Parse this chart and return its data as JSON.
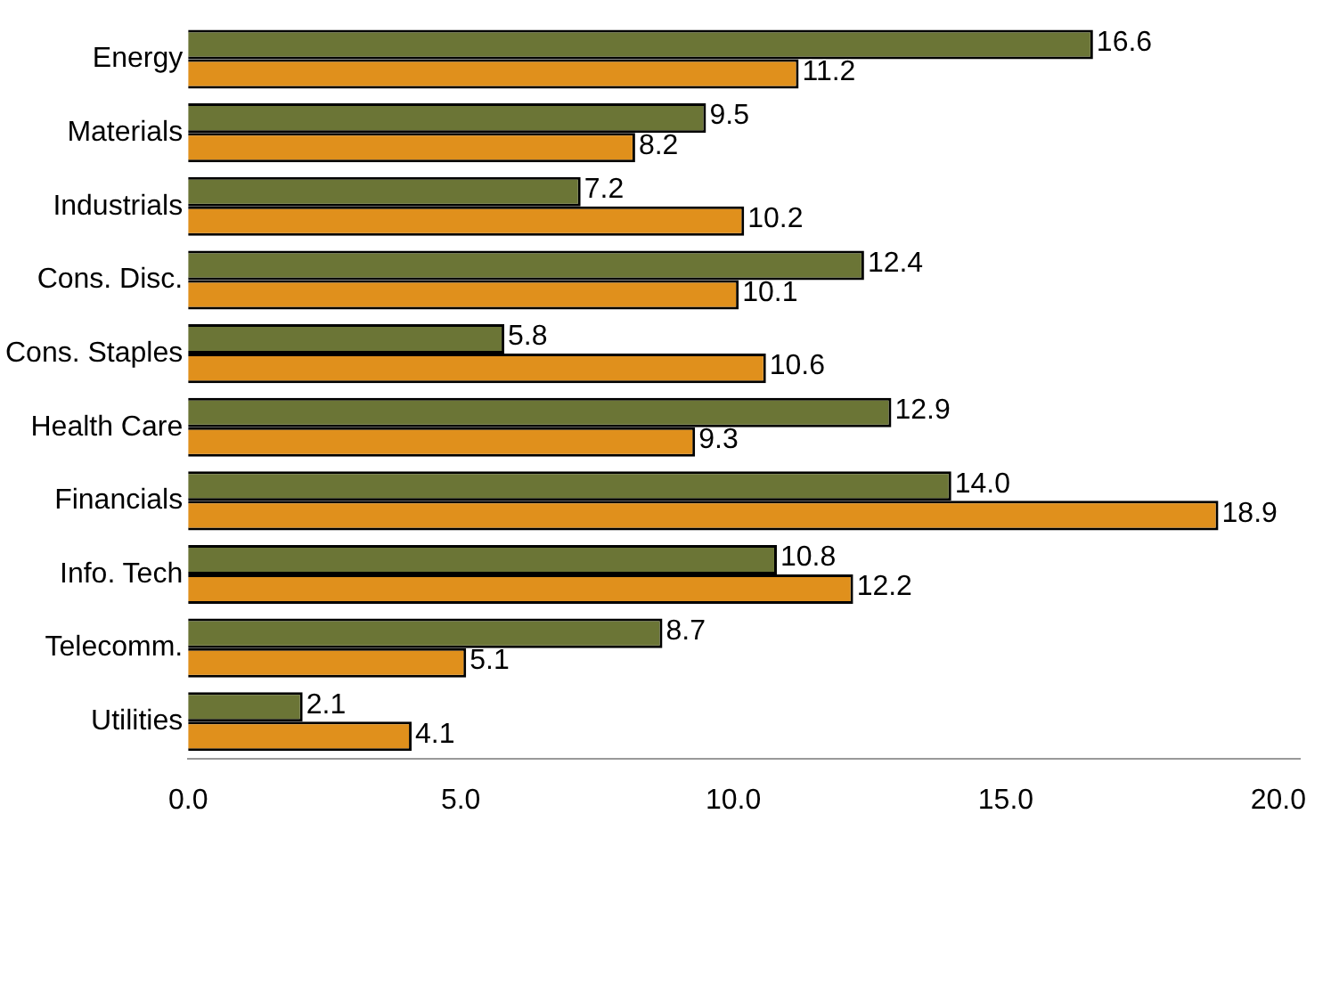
{
  "chart_data": {
    "type": "bar",
    "orientation": "horizontal",
    "categories": [
      "Energy",
      "Materials",
      "Industrials",
      "Cons. Disc.",
      "Cons. Staples",
      "Health Care",
      "Financials",
      "Info. Tech",
      "Telecomm.",
      "Utilities"
    ],
    "series": [
      {
        "color": "#6b7536",
        "values": [
          16.6,
          9.5,
          7.2,
          12.4,
          5.8,
          12.9,
          14.0,
          10.8,
          8.7,
          2.1
        ],
        "value_labels": [
          "16.6",
          "9.5",
          "7.2",
          "12.4",
          "5.8",
          "12.9",
          "14.0",
          "10.8",
          "8.7",
          "2.1"
        ]
      },
      {
        "color": "#e0901c",
        "values": [
          11.2,
          8.2,
          10.2,
          10.1,
          10.6,
          9.3,
          18.9,
          12.2,
          5.1,
          4.1
        ],
        "value_labels": [
          "11.2",
          "8.2",
          "10.2",
          "10.1",
          "10.6",
          "9.3",
          "18.9",
          "12.2",
          "5.1",
          "4.1"
        ]
      }
    ],
    "xlim": [
      0,
      20.4
    ],
    "xticks": [
      {
        "value": 0,
        "label": "0.0"
      },
      {
        "value": 5,
        "label": "5.0"
      },
      {
        "value": 10,
        "label": "10.0"
      },
      {
        "value": 15,
        "label": "15.0"
      },
      {
        "value": 20,
        "label": "20.0"
      }
    ],
    "grid": false,
    "legend": false
  }
}
